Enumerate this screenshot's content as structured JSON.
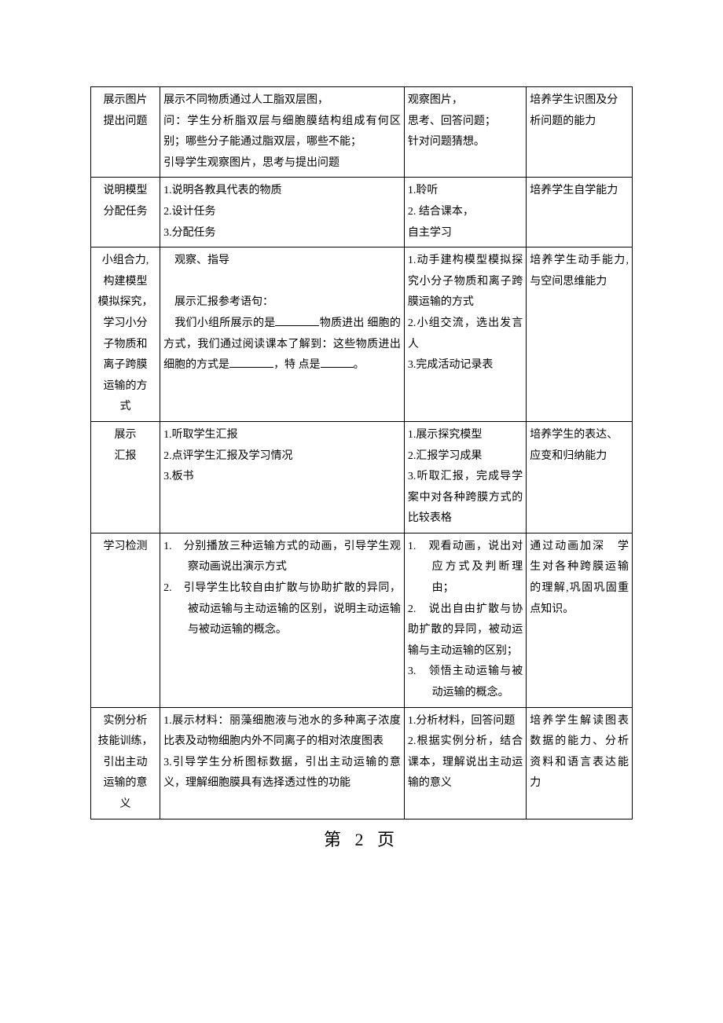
{
  "footer": "第 2 页",
  "rows": [
    {
      "c1": [
        "展示图片",
        "提出问题"
      ],
      "c2": [
        "展示不同物质通过人工脂双层图，",
        "问：学生分析脂双层与细胞膜结构组成有何区别；哪些分子能通过脂双层，哪些不能；",
        "引导学生观察图片，思考与提出问题"
      ],
      "c3": [
        "观察图片，",
        "思考、回答问题；",
        "针对问题猜想。"
      ],
      "c4": [
        "培养学生识图及分析问题的能力"
      ]
    },
    {
      "c1": [
        "说明模型",
        "分配任务"
      ],
      "c2": [
        "1.说明各教具代表的物质",
        "2.设计任务",
        "3.分配任务"
      ],
      "c3": [
        "1.聆听",
        "2. 结合课本，",
        "   自主学习"
      ],
      "c4": [
        "培养学生自学能力"
      ]
    },
    {
      "c1": [
        "小组合力,",
        "构建模型",
        "模拟探究，",
        "学习小分",
        "子物质和",
        "离子跨膜",
        "运输的方",
        "式"
      ],
      "c2_pre": "　观察、指导",
      "c2_blank": {
        "line1a": "　展示汇报参考语句：",
        "line1b_left": "　我们小组所展示的是",
        "line1b_right": "物质进出",
        "line2_left": "细胞的方式，我们通过阅读课本了解到：这些物质进出细胞的方式是",
        "line2_right": "，特",
        "line3_left": "点是",
        "line3_right": "。"
      },
      "c3": [
        "1.动手建构模型模拟探究小分子物质和离子跨膜运输的方式",
        "2.小组交流，选出发言人",
        "3.完成活动记录表"
      ],
      "c4": [
        "培养学生动手能力,与空间思维能力"
      ]
    },
    {
      "c1": [
        "展示",
        "汇报"
      ],
      "c2": [
        "1.听取学生汇报",
        "2.点评学生汇报及学习情况",
        "3.板书"
      ],
      "c3": [
        "1.展示探究模型",
        "2.汇报学习成果",
        "3.听取汇报，完成导学案中对各种跨膜方式的比较表格"
      ],
      "c4": [
        "培养学生的表达、应变和归纳能力"
      ]
    },
    {
      "c1": [
        "学习检测"
      ],
      "c2_list": [
        {
          "n": "1.",
          "t": "分别播放三种运输方式的动画，引导学生观察动画说出演示方式"
        },
        {
          "n": "2.",
          "t": "引导学生比较自由扩散与协助扩散的异同，被动运输与主动运输的区别，说明主动运输与被动运输的概念。"
        }
      ],
      "c3_list": [
        {
          "n": "1.",
          "t": "观看动画，说出对应方式及判断理由；",
          "indent": true
        },
        {
          "n": "2.",
          "t": "说出自由扩散与协助扩散的异同，被动运输与主动运输的区别；",
          "indent": false
        },
        {
          "n": "3.",
          "t": "领悟主动运输与被动运输的概念。",
          "indent": true
        }
      ],
      "c4": [
        "通过动画加深　学生对各种跨膜运输的理解,巩固巩固重点知识。"
      ]
    },
    {
      "c1": [
        "实例分析",
        "技能训练，",
        "引出主动",
        "运输的意",
        "义"
      ],
      "c2": [
        "1.展示材料：丽藻细胞液与池水的多种离子浓度比表及动物细胞内外不同离子的相对浓度图表",
        "3.引导学生分析图标数据，引出主动运输的意义，理解细胞膜具有选择透过性的功能"
      ],
      "c3": [
        "1.分析材料，回答问题",
        "2.根据实例分析，结合课本，理解说出主动运输的意义"
      ],
      "c4": [
        "培养学生解读图表数据的能力、分析资料和语言表达能力"
      ]
    }
  ]
}
